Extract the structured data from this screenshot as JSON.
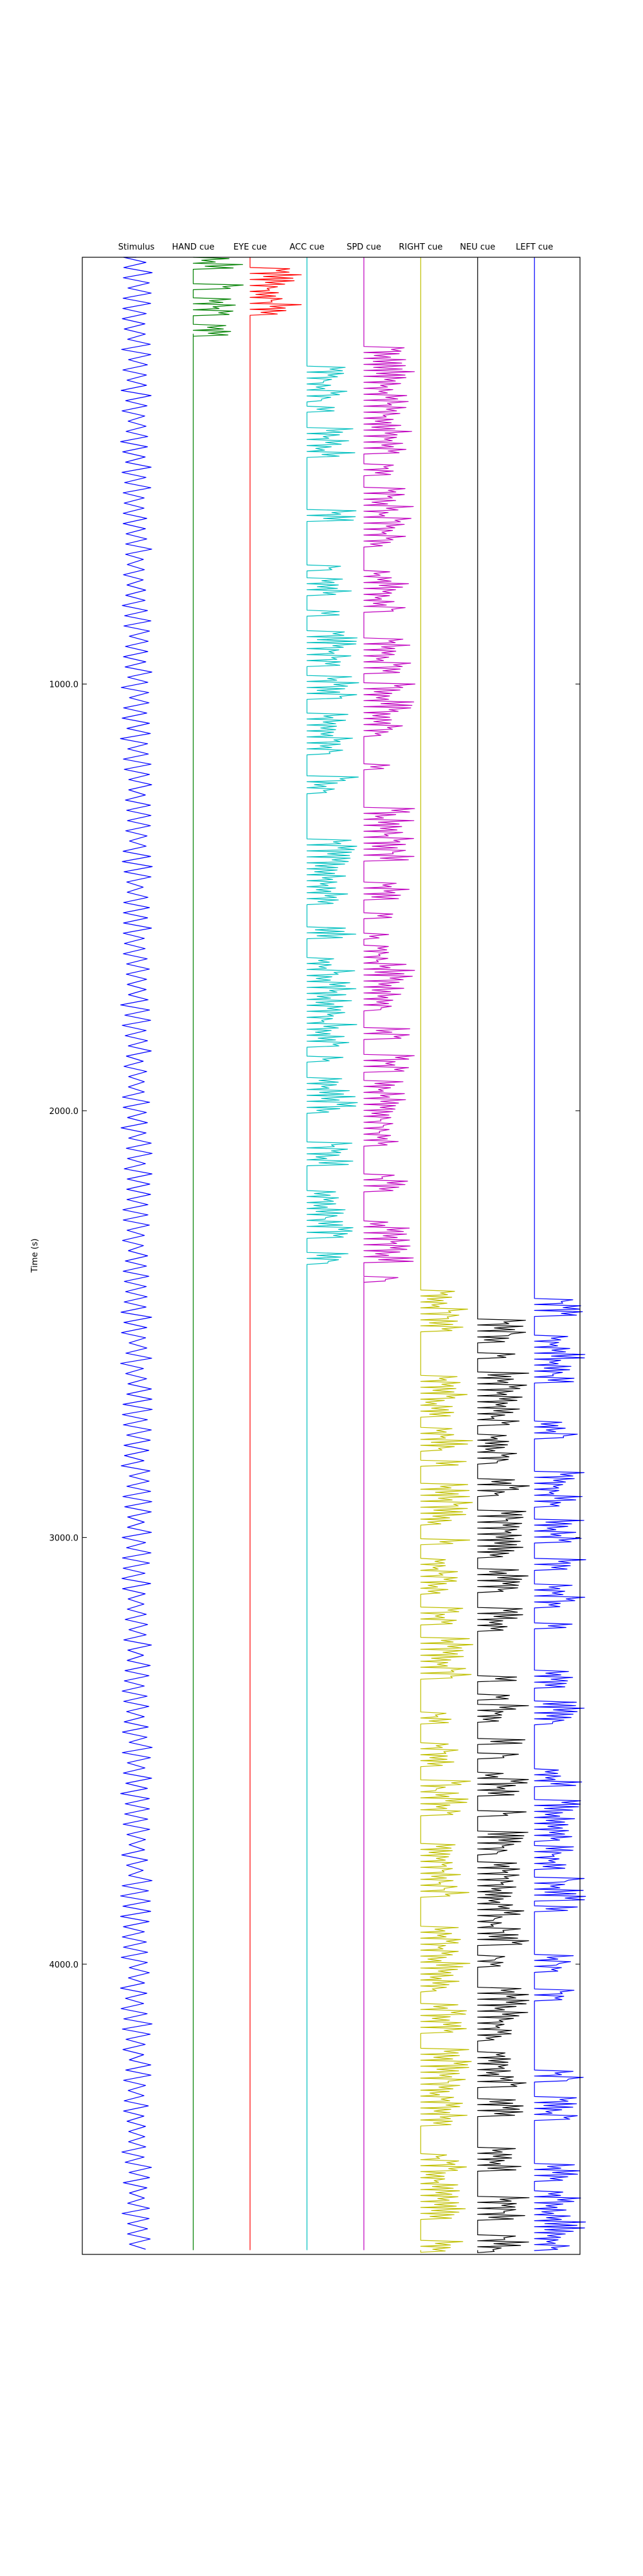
{
  "chart_data": {
    "type": "line",
    "title": "",
    "xlabel": "",
    "ylabel": "Time (s)",
    "ylim": [
      0,
      4680
    ],
    "y_inverted": true,
    "y_ticks": [
      1000,
      2000,
      3000,
      4000
    ],
    "y_tick_labels": [
      "1000.0",
      "2000.0",
      "3000.0",
      "4000.0"
    ],
    "grid": false,
    "legend": "none",
    "columns": [
      {
        "label": "Stimulus",
        "color": "#0000ff",
        "pattern": "stimulus",
        "active": [
          [
            0,
            4670
          ]
        ]
      },
      {
        "label": "HAND cue",
        "color": "#008000",
        "pattern": "cue",
        "active": [
          [
            0,
            180
          ]
        ]
      },
      {
        "label": "EYE cue",
        "color": "#ff0000",
        "pattern": "cue",
        "active": [
          [
            0,
            170
          ]
        ]
      },
      {
        "label": "ACC cue",
        "color": "#00bfbf",
        "pattern": "cue",
        "active": [
          [
            170,
            2420
          ]
        ]
      },
      {
        "label": "SPD cue",
        "color": "#bf00bf",
        "pattern": "cue",
        "active": [
          [
            190,
            2390
          ]
        ]
      },
      {
        "label": "RIGHT cue",
        "color": "#bfbf00",
        "pattern": "cue",
        "active": [
          [
            2420,
            4670
          ]
        ]
      },
      {
        "label": "NEU cue",
        "color": "#000000",
        "pattern": "cue",
        "active": [
          [
            2430,
            4670
          ]
        ]
      },
      {
        "label": "LEFT cue",
        "color": "#0000ff",
        "pattern": "cue",
        "active": [
          [
            2440,
            4670
          ]
        ]
      }
    ]
  }
}
